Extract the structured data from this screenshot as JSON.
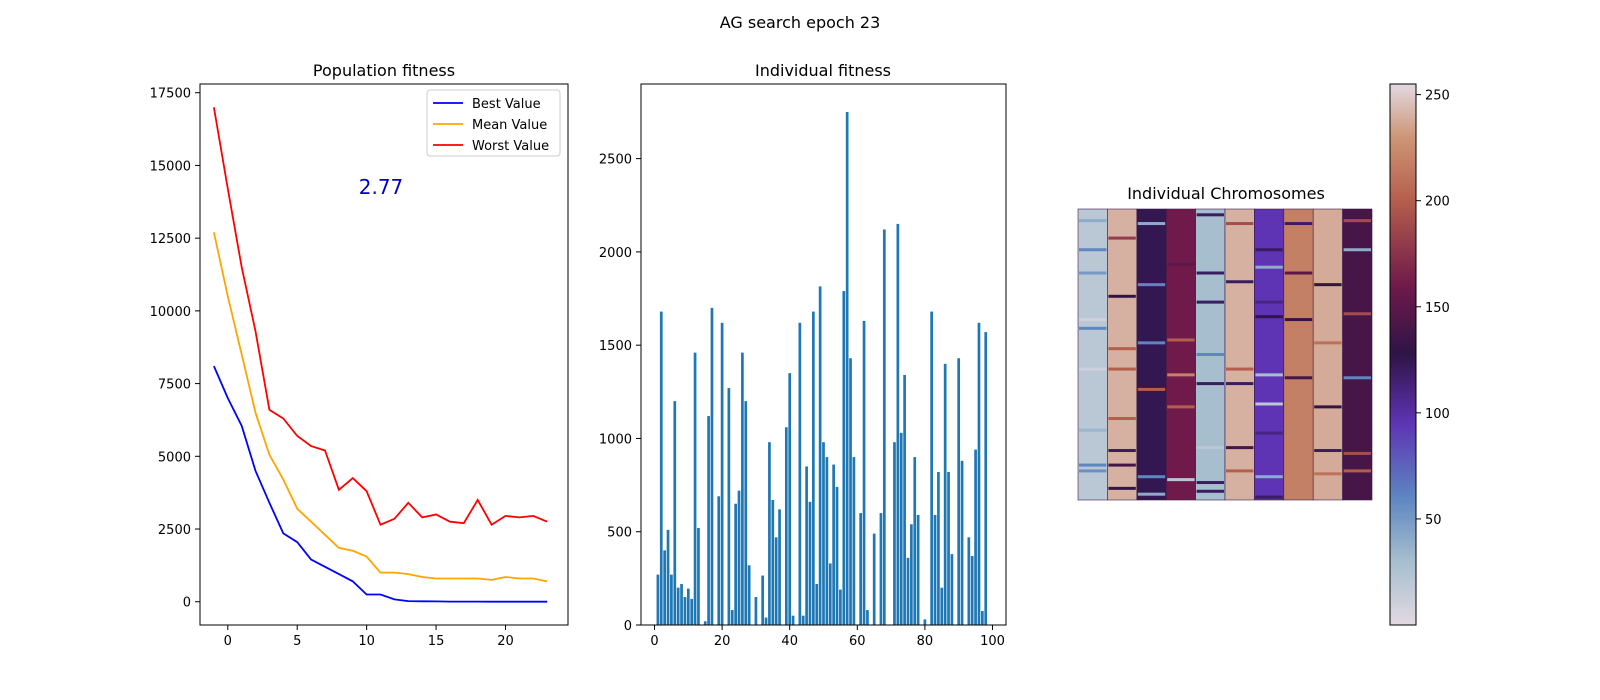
{
  "suptitle": "AG search epoch 23",
  "colors": {
    "best": "#0000ff",
    "mean": "#ffa500",
    "worst": "#ff0000",
    "bar": "#1f77b4",
    "annotation": "#0000cc"
  },
  "chart_data": [
    {
      "type": "line",
      "title": "Population fitness",
      "xlabel": "",
      "ylabel": "",
      "xlim": [
        -2,
        24.5
      ],
      "ylim": [
        -800,
        17800
      ],
      "xticks": [
        0,
        5,
        10,
        15,
        20
      ],
      "yticks": [
        0,
        2500,
        5000,
        7500,
        10000,
        12500,
        15000,
        17500
      ],
      "x": [
        -1,
        0,
        1,
        2,
        3,
        4,
        5,
        6,
        7,
        8,
        9,
        10,
        11,
        12,
        13,
        14,
        15,
        16,
        17,
        18,
        19,
        20,
        21,
        22,
        23
      ],
      "series": [
        {
          "name": "Best Value",
          "values": [
            8100,
            7000,
            6050,
            4500,
            3400,
            2350,
            2050,
            1450,
            1200,
            950,
            700,
            250,
            250,
            80,
            20,
            15,
            10,
            5,
            5,
            3,
            2,
            2,
            2,
            1,
            1
          ]
        },
        {
          "name": "Mean Value",
          "values": [
            12700,
            10500,
            8500,
            6500,
            5050,
            4200,
            3200,
            2750,
            2300,
            1850,
            1750,
            1550,
            1000,
            1000,
            950,
            850,
            800,
            800,
            800,
            800,
            750,
            850,
            800,
            800,
            700
          ]
        },
        {
          "name": "Worst Value",
          "values": [
            17000,
            14200,
            11500,
            9300,
            6600,
            6300,
            5700,
            5350,
            5200,
            3850,
            4250,
            3800,
            2650,
            2850,
            3400,
            2900,
            3000,
            2750,
            2700,
            3500,
            2650,
            2950,
            2900,
            2950,
            2750
          ]
        }
      ],
      "legend": "top-right",
      "annotation": "2.77"
    },
    {
      "type": "bar",
      "title": "Individual fitness",
      "xlim": [
        -4,
        104
      ],
      "ylim": [
        0,
        2900
      ],
      "xticks": [
        0,
        20,
        40,
        60,
        80,
        100
      ],
      "yticks": [
        0,
        500,
        1000,
        1500,
        2000,
        2500
      ],
      "values": [
        0,
        270,
        1680,
        400,
        510,
        270,
        1200,
        200,
        220,
        150,
        195,
        140,
        1460,
        520,
        0,
        20,
        1120,
        1700,
        0,
        690,
        1620,
        0,
        1270,
        80,
        650,
        720,
        1460,
        1200,
        320,
        0,
        150,
        0,
        265,
        40,
        980,
        670,
        470,
        620,
        0,
        1060,
        1350,
        50,
        0,
        1620,
        50,
        850,
        660,
        1680,
        220,
        1815,
        980,
        900,
        330,
        860,
        740,
        190,
        1790,
        2750,
        1430,
        900,
        0,
        600,
        1630,
        80,
        0,
        490,
        0,
        600,
        2120,
        0,
        0,
        980,
        2150,
        1030,
        1340,
        360,
        540,
        900,
        590,
        0,
        30,
        0,
        1680,
        590,
        820,
        200,
        1400,
        820,
        380,
        0,
        1430,
        880,
        0,
        470,
        370,
        940,
        1620,
        75,
        1570,
        0
      ]
    },
    {
      "type": "heatmap",
      "title": "Individual Chromosomes",
      "colorbar_ticks": [
        50,
        100,
        150,
        200,
        250
      ],
      "colorbar_range": [
        0,
        255
      ],
      "columns": [
        {
          "base": 20,
          "bands": [
            [
              0.04,
              40
            ],
            [
              0.14,
              60
            ],
            [
              0.22,
              50
            ],
            [
              0.38,
              10
            ],
            [
              0.41,
              60
            ],
            [
              0.55,
              10
            ],
            [
              0.76,
              35
            ],
            [
              0.88,
              60
            ],
            [
              0.9,
              55
            ]
          ]
        },
        {
          "base": 240,
          "bands": [
            [
              0.1,
              180
            ],
            [
              0.3,
              130
            ],
            [
              0.48,
              200
            ],
            [
              0.55,
              200
            ],
            [
              0.72,
              200
            ],
            [
              0.83,
              120
            ],
            [
              0.88,
              140
            ],
            [
              0.96,
              130
            ]
          ]
        },
        {
          "base": 125,
          "bands": [
            [
              0.05,
              40
            ],
            [
              0.26,
              60
            ],
            [
              0.46,
              60
            ],
            [
              0.62,
              200
            ],
            [
              0.92,
              60
            ],
            [
              0.98,
              40
            ]
          ]
        },
        {
          "base": 160,
          "bands": [
            [
              0.19,
              150
            ],
            [
              0.45,
              200
            ],
            [
              0.57,
              220
            ],
            [
              0.68,
              200
            ],
            [
              0.93,
              20
            ]
          ]
        },
        {
          "base": 30,
          "bands": [
            [
              0.02,
              120
            ],
            [
              0.22,
              120
            ],
            [
              0.32,
              120
            ],
            [
              0.5,
              60
            ],
            [
              0.6,
              120
            ],
            [
              0.82,
              20
            ],
            [
              0.94,
              120
            ],
            [
              0.97,
              120
            ]
          ]
        },
        {
          "base": 240,
          "bands": [
            [
              0.05,
              190
            ],
            [
              0.25,
              120
            ],
            [
              0.55,
              200
            ],
            [
              0.6,
              120
            ],
            [
              0.82,
              140
            ],
            [
              0.9,
              200
            ]
          ]
        },
        {
          "base": 95,
          "bands": [
            [
              0.14,
              120
            ],
            [
              0.2,
              40
            ],
            [
              0.32,
              110
            ],
            [
              0.37,
              130
            ],
            [
              0.57,
              30
            ],
            [
              0.67,
              20
            ],
            [
              0.77,
              110
            ],
            [
              0.92,
              40
            ],
            [
              0.99,
              120
            ]
          ]
        },
        {
          "base": 218,
          "bands": [
            [
              0.05,
              120
            ],
            [
              0.22,
              150
            ],
            [
              0.38,
              130
            ],
            [
              0.58,
              140
            ]
          ]
        },
        {
          "base": 238,
          "bands": [
            [
              0.26,
              130
            ],
            [
              0.46,
              210
            ],
            [
              0.68,
              130
            ],
            [
              0.83,
              120
            ],
            [
              0.91,
              210
            ]
          ]
        },
        {
          "base": 140,
          "bands": [
            [
              0.04,
              190
            ],
            [
              0.14,
              40
            ],
            [
              0.36,
              190
            ],
            [
              0.58,
              60
            ],
            [
              0.84,
              190
            ],
            [
              0.9,
              200
            ]
          ]
        }
      ]
    }
  ]
}
